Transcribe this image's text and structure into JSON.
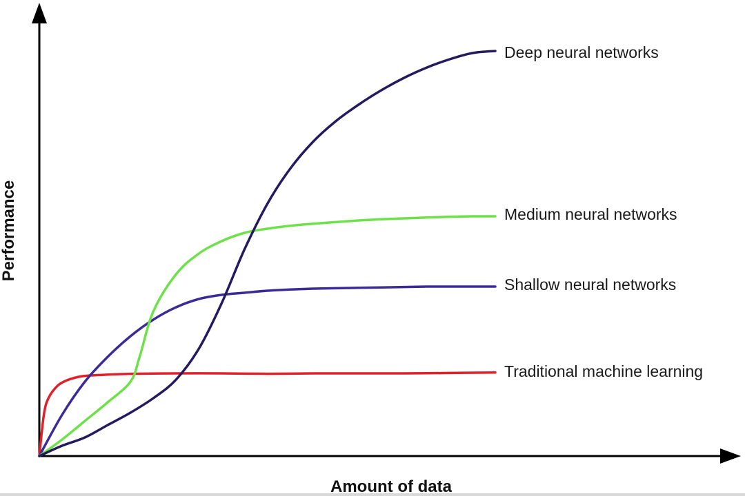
{
  "chart_data": {
    "type": "line",
    "title": "",
    "xlabel": "Amount of data",
    "ylabel": "Performance",
    "xlim": [
      0,
      100
    ],
    "ylim": [
      0,
      100
    ],
    "grid": false,
    "legend": "inline labels at right end of each line",
    "series": [
      {
        "name": "Deep neural networks",
        "color": "#241a5e",
        "x": [
          0,
          5,
          10,
          15,
          20,
          25,
          30,
          35,
          40,
          45,
          50,
          55,
          60,
          65,
          70,
          75,
          80,
          85,
          90,
          95,
          100
        ],
        "y": [
          0,
          2.5,
          4.5,
          7.5,
          10.5,
          14,
          18.5,
          26,
          37,
          50,
          61,
          69.5,
          76,
          81,
          85,
          88.5,
          91.5,
          94,
          96,
          97.5,
          98
        ]
      },
      {
        "name": "Medium neural networks",
        "color": "#6ee04a",
        "x": [
          0,
          5,
          10,
          15,
          20,
          22,
          25,
          30,
          35,
          40,
          45,
          50,
          55,
          60,
          65,
          70,
          75,
          80,
          85,
          90,
          95,
          100
        ],
        "y": [
          0,
          4,
          8.5,
          13,
          18,
          24,
          35,
          44,
          49,
          52,
          54,
          55,
          55.7,
          56.2,
          56.6,
          57,
          57.3,
          57.5,
          57.7,
          57.9,
          58,
          58
        ]
      },
      {
        "name": "Shallow neural networks",
        "color": "#3c2a96",
        "x": [
          0,
          5,
          10,
          15,
          20,
          25,
          30,
          35,
          40,
          45,
          50,
          55,
          60,
          65,
          70,
          75,
          80,
          85,
          90,
          95,
          100
        ],
        "y": [
          0,
          10,
          18,
          24,
          29,
          33,
          36,
          38,
          39,
          39.5,
          40,
          40.3,
          40.5,
          40.6,
          40.7,
          40.8,
          40.9,
          41,
          41,
          41,
          41
        ]
      },
      {
        "name": "Traditional machine learning",
        "color": "#e0202a",
        "x": [
          0,
          1,
          2,
          4,
          6,
          8,
          10,
          15,
          20,
          30,
          40,
          50,
          60,
          70,
          80,
          90,
          100
        ],
        "y": [
          0,
          10,
          14,
          17,
          18.3,
          19,
          19.4,
          19.7,
          19.9,
          20,
          20,
          19.9,
          20,
          20,
          20,
          20.1,
          20.2
        ]
      }
    ]
  }
}
